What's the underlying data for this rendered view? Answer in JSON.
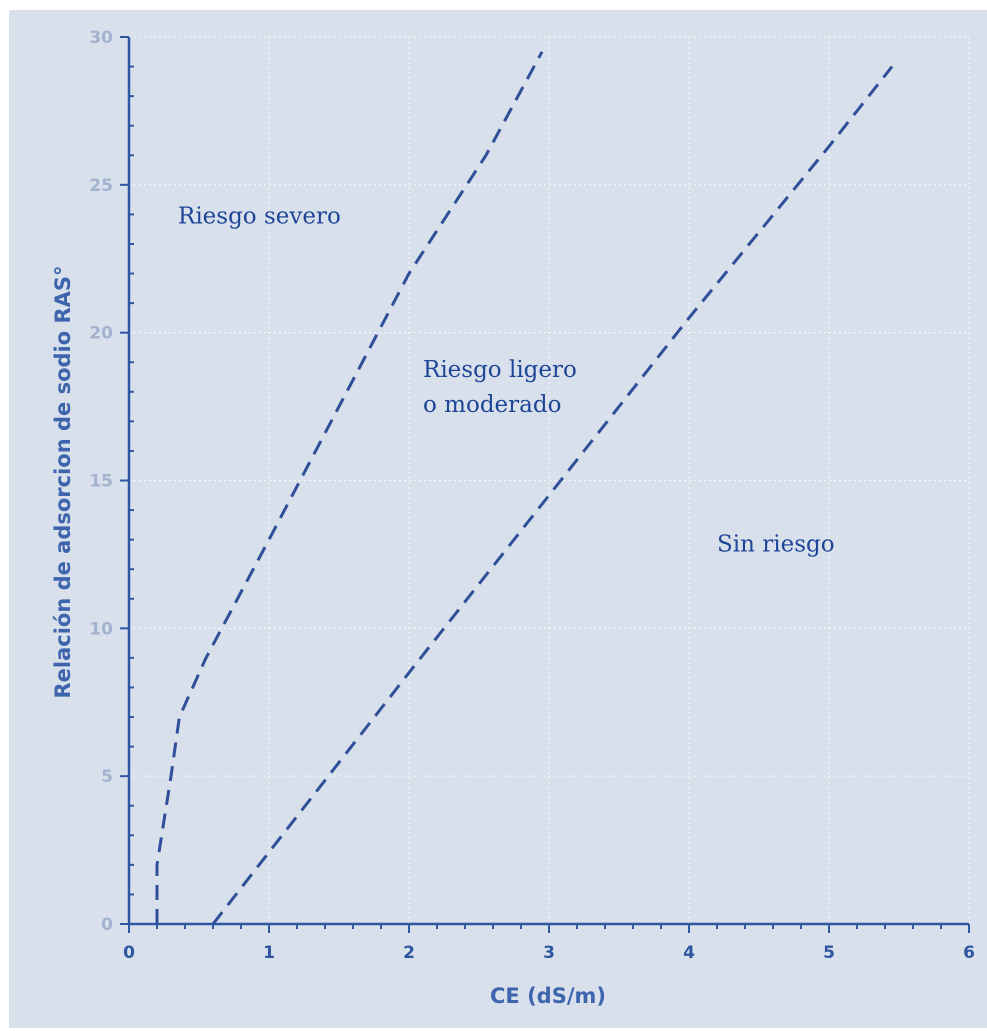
{
  "chart_data": {
    "type": "line",
    "xlabel": "CE (dS/m)",
    "ylabel": "Relación de adsorcion de sodio RAS°",
    "xlim": [
      0,
      6
    ],
    "ylim": [
      0,
      30
    ],
    "xticks": [
      0,
      1,
      2,
      3,
      4,
      5,
      6
    ],
    "yticks": [
      0,
      5,
      10,
      15,
      20,
      25,
      30
    ],
    "grid": true,
    "line_style": "dashed",
    "colors": {
      "line": "#2f4f98",
      "axis": "#2f56a0",
      "background": "#d8e0ec",
      "grid": "#ffffff"
    },
    "series": [
      {
        "points": [
          [
            0.2,
            0
          ],
          [
            0.2,
            2
          ],
          [
            0.3,
            5
          ],
          [
            0.36,
            7
          ],
          [
            0.55,
            9
          ],
          [
            1.0,
            13
          ],
          [
            2.0,
            22
          ],
          [
            2.55,
            26
          ],
          [
            2.95,
            29.5
          ]
        ]
      },
      {
        "points": [
          [
            0.6,
            0
          ],
          [
            2.0,
            8.5
          ],
          [
            3.0,
            14.5
          ],
          [
            4.0,
            20.5
          ],
          [
            5.0,
            26.3
          ],
          [
            5.45,
            29
          ]
        ]
      }
    ],
    "annotations": [
      {
        "lines": [
          "Riesgo severo"
        ],
        "x": 0.35,
        "y": 23.7
      },
      {
        "lines": [
          "Riesgo ligero",
          "o moderado"
        ],
        "x": 2.1,
        "y": 18.5
      },
      {
        "lines": [
          "Sin riesgo"
        ],
        "x": 4.2,
        "y": 12.6
      }
    ]
  }
}
